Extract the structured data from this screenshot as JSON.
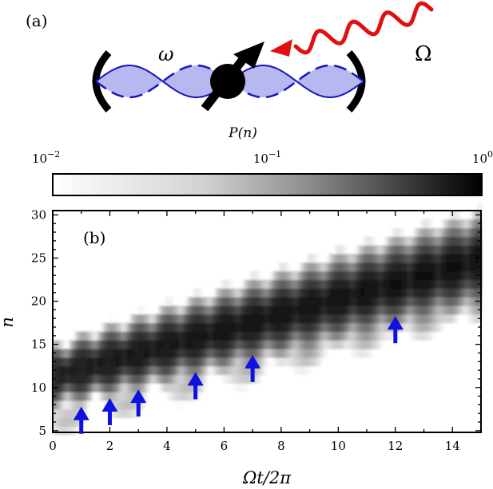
{
  "panel_a": {
    "label": "(a)",
    "omega_label": "ω",
    "Omega_label": "Ω",
    "colors": {
      "mode_fill": "#b8b8f0",
      "mode_line": "#1515c0",
      "drive_arrow": "#e01010",
      "spin": "#000000"
    }
  },
  "colorbar": {
    "title": "P(n)",
    "scale": "log",
    "range": [
      0.01,
      1
    ],
    "ticks": [
      {
        "base": "10",
        "exp": "−2",
        "value": 0.01
      },
      {
        "base": "10",
        "exp": "−1",
        "value": 0.1
      },
      {
        "base": "10",
        "exp": "0",
        "value": 1
      }
    ]
  },
  "panel_b": {
    "label": "(b)",
    "marker_color": "#1010e0"
  },
  "chart_data": {
    "type": "heatmap",
    "xlabel": "Ωt/2π",
    "ylabel": "n",
    "xlim": [
      0,
      15
    ],
    "ylim": [
      4.8,
      30.5
    ],
    "xticks": [
      0,
      2,
      4,
      6,
      8,
      10,
      12,
      14
    ],
    "yticks": [
      5,
      10,
      15,
      20,
      25,
      30
    ],
    "color_scale": "log, 0.01 (white) to 1 (black)",
    "ridge": {
      "description": "two interleaved oscillating branches rising linearly with time",
      "center_start": 11.3,
      "center_slope": 0.9,
      "branch_amplitude": 1.3,
      "oscillation_period": 1.0
    },
    "arrows": [
      {
        "x": 1,
        "n": 7.5
      },
      {
        "x": 2,
        "n": 8.5
      },
      {
        "x": 3,
        "n": 9.5
      },
      {
        "x": 5,
        "n": 11.5
      },
      {
        "x": 7,
        "n": 13.5
      },
      {
        "x": 12,
        "n": 18.0
      }
    ]
  }
}
